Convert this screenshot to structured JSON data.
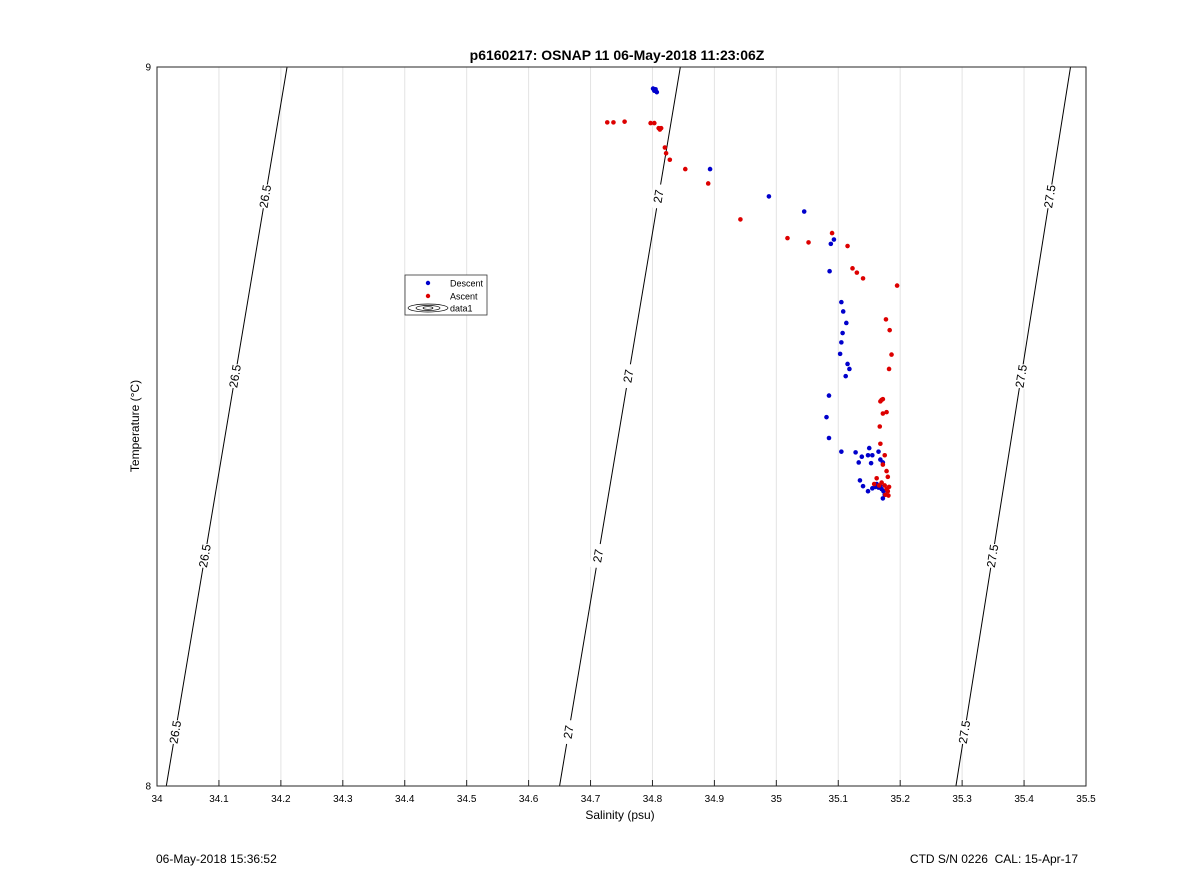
{
  "footer": {
    "left": "06-May-2018 15:36:52",
    "right": "CTD S/N 0226  CAL: 15-Apr-17"
  },
  "colors": {
    "descent": "#0000cc",
    "ascent": "#dd0000",
    "contour": "#000000",
    "grid": "#e3e3e3"
  },
  "chart_data": {
    "type": "scatter",
    "title": "p6160217: OSNAP 11 06-May-2018 11:23:06Z",
    "xlabel": "Salinity (psu)",
    "ylabel": "Temperature (°C)",
    "xlim": [
      34,
      35.5
    ],
    "ylim": [
      8,
      9
    ],
    "xticks": [
      "34",
      "34.1",
      "34.2",
      "34.3",
      "34.4",
      "34.5",
      "34.6",
      "34.7",
      "34.8",
      "34.9",
      "35",
      "35.1",
      "35.2",
      "35.3",
      "35.4",
      "35.5"
    ],
    "yticks": [
      "8",
      "9"
    ],
    "grid": "vertical",
    "legend": {
      "placement": "left-center",
      "entries": [
        "Descent",
        "Ascent",
        "data1"
      ]
    },
    "contours": [
      {
        "level": "26.5",
        "from": [
          34.015,
          8.0
        ],
        "to": [
          34.21,
          9.0
        ],
        "label_y": [
          8.075,
          8.32,
          8.57,
          8.82
        ]
      },
      {
        "level": "27",
        "from": [
          34.65,
          8.0
        ],
        "to": [
          34.845,
          9.0
        ],
        "label_y": [
          8.075,
          8.32,
          8.57,
          8.82
        ]
      },
      {
        "level": "27.5",
        "from": [
          35.29,
          8.0
        ],
        "to": [
          35.475,
          9.0
        ],
        "label_y": [
          8.075,
          8.32,
          8.57,
          8.82
        ]
      }
    ],
    "series": [
      {
        "name": "Descent",
        "marker": "dot",
        "points": [
          [
            34.801,
            8.97
          ],
          [
            34.803,
            8.967
          ],
          [
            34.805,
            8.969
          ],
          [
            34.807,
            8.965
          ],
          [
            34.893,
            8.858
          ],
          [
            34.988,
            8.82
          ],
          [
            35.045,
            8.799
          ],
          [
            35.093,
            8.76
          ],
          [
            35.088,
            8.754
          ],
          [
            35.086,
            8.716
          ],
          [
            35.105,
            8.673
          ],
          [
            35.108,
            8.66
          ],
          [
            35.113,
            8.644
          ],
          [
            35.107,
            8.63
          ],
          [
            35.105,
            8.617
          ],
          [
            35.103,
            8.601
          ],
          [
            35.115,
            8.587
          ],
          [
            35.118,
            8.58
          ],
          [
            35.112,
            8.57
          ],
          [
            35.085,
            8.543
          ],
          [
            35.081,
            8.513
          ],
          [
            35.085,
            8.484
          ],
          [
            35.105,
            8.465
          ],
          [
            35.128,
            8.464
          ],
          [
            35.138,
            8.458
          ],
          [
            35.148,
            8.46
          ],
          [
            35.155,
            8.46
          ],
          [
            35.15,
            8.47
          ],
          [
            35.133,
            8.45
          ],
          [
            35.153,
            8.449
          ],
          [
            35.165,
            8.465
          ],
          [
            35.168,
            8.454
          ],
          [
            35.172,
            8.45
          ],
          [
            35.135,
            8.425
          ],
          [
            35.14,
            8.417
          ],
          [
            35.148,
            8.41
          ],
          [
            35.155,
            8.414
          ],
          [
            35.16,
            8.416
          ],
          [
            35.165,
            8.415
          ],
          [
            35.17,
            8.413
          ],
          [
            35.173,
            8.41
          ],
          [
            35.168,
            8.417
          ],
          [
            35.162,
            8.42
          ],
          [
            35.172,
            8.4
          ],
          [
            35.175,
            8.405
          ]
        ]
      },
      {
        "name": "Ascent",
        "marker": "dot",
        "points": [
          [
            34.727,
            8.923
          ],
          [
            34.737,
            8.923
          ],
          [
            34.755,
            8.924
          ],
          [
            34.797,
            8.922
          ],
          [
            34.803,
            8.922
          ],
          [
            34.81,
            8.915
          ],
          [
            34.812,
            8.913
          ],
          [
            34.814,
            8.915
          ],
          [
            34.82,
            8.888
          ],
          [
            34.822,
            8.88
          ],
          [
            34.828,
            8.871
          ],
          [
            34.853,
            8.858
          ],
          [
            34.89,
            8.838
          ],
          [
            34.942,
            8.788
          ],
          [
            35.018,
            8.762
          ],
          [
            35.052,
            8.756
          ],
          [
            35.09,
            8.769
          ],
          [
            35.115,
            8.751
          ],
          [
            35.123,
            8.72
          ],
          [
            35.13,
            8.714
          ],
          [
            35.14,
            8.706
          ],
          [
            35.195,
            8.696
          ],
          [
            35.177,
            8.649
          ],
          [
            35.183,
            8.634
          ],
          [
            35.186,
            8.6
          ],
          [
            35.182,
            8.58
          ],
          [
            35.168,
            8.535
          ],
          [
            35.17,
            8.537
          ],
          [
            35.172,
            8.538
          ],
          [
            35.178,
            8.52
          ],
          [
            35.172,
            8.518
          ],
          [
            35.167,
            8.5
          ],
          [
            35.168,
            8.476
          ],
          [
            35.175,
            8.46
          ],
          [
            35.172,
            8.447
          ],
          [
            35.178,
            8.438
          ],
          [
            35.18,
            8.43
          ],
          [
            35.162,
            8.428
          ],
          [
            35.158,
            8.42
          ],
          [
            35.166,
            8.418
          ],
          [
            35.17,
            8.422
          ],
          [
            35.175,
            8.418
          ],
          [
            35.178,
            8.413
          ],
          [
            35.18,
            8.41
          ],
          [
            35.182,
            8.416
          ],
          [
            35.176,
            8.405
          ],
          [
            35.181,
            8.404
          ]
        ]
      }
    ]
  }
}
